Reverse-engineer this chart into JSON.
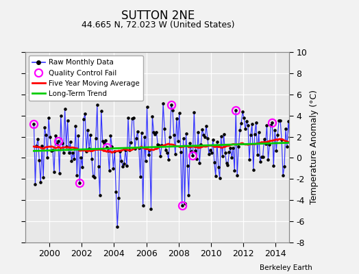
{
  "title": "SUTTON 2NE",
  "subtitle": "44.665 N, 72.023 W (United States)",
  "ylabel": "Temperature Anomaly (°C)",
  "credit": "Berkeley Earth",
  "xlim": [
    1998.5,
    2014.83
  ],
  "ylim": [
    -8,
    10
  ],
  "yticks": [
    -8,
    -6,
    -4,
    -2,
    0,
    2,
    4,
    6,
    8,
    10
  ],
  "xticks": [
    2000,
    2002,
    2004,
    2006,
    2008,
    2010,
    2012,
    2014
  ],
  "raw_color": "#3333ff",
  "ma_color": "#ff0000",
  "trend_color": "#00cc00",
  "qc_color": "#ff00ff",
  "bg_color": "#e8e8e8",
  "fig_bg": "#f2f2f2"
}
